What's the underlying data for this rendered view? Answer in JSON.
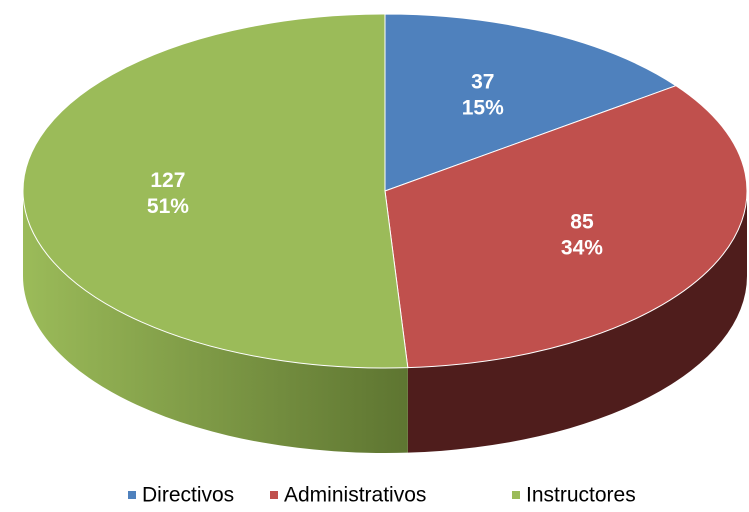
{
  "chart_data": {
    "type": "pie3d",
    "categories": [
      "Directivos",
      "Administrativos",
      "Instructores"
    ],
    "values": [
      37,
      85,
      127
    ],
    "percentages": [
      15,
      34,
      51
    ],
    "percentage_labels": [
      "15%",
      "34%",
      "51%"
    ],
    "colors": [
      "#4f81bd",
      "#c0504d",
      "#9bbb59"
    ],
    "side_colors": [
      "#2c4d75",
      "#4f1d1c",
      "#5e7531"
    ],
    "legend": "bottom"
  }
}
